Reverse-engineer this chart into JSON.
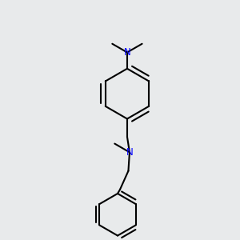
{
  "bg_color": "#e8eaeb",
  "bond_color": "#000000",
  "nitrogen_color": "#0000ff",
  "line_width": 1.5,
  "font_size": 8.5,
  "figsize": [
    3.0,
    3.0
  ],
  "dpi": 100
}
